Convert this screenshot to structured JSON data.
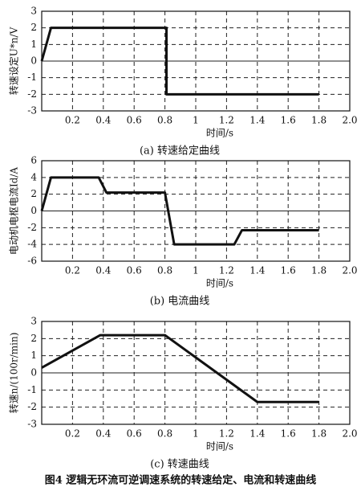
{
  "chart_data": [
    {
      "type": "line",
      "ylabel": "转速设定U*n/V",
      "xlabel": "时间/s",
      "caption": "(a) 转速给定曲线",
      "xlim": [
        0,
        2
      ],
      "ylim": [
        -3,
        3
      ],
      "xticks": [
        0.2,
        0.4,
        0.6,
        0.8,
        1.0,
        1.2,
        1.4,
        1.6,
        1.8,
        {
          "value": 2,
          "label": "2.0"
        }
      ],
      "yticks": [
        3,
        2,
        1,
        0,
        -1,
        -2,
        -3
      ],
      "grid": true,
      "series": [
        {
          "color": "#111111",
          "x": [
            0,
            0.06,
            0.81,
            0.81,
            1.8
          ],
          "values": [
            0,
            2,
            2,
            -2,
            -2
          ]
        }
      ]
    },
    {
      "type": "line",
      "ylabel": "电动机电枢电流Id/A",
      "xlabel": "时间/s",
      "caption": "(b) 电流曲线",
      "xlim": [
        0,
        2
      ],
      "ylim": [
        -6,
        6
      ],
      "xticks": [
        0.2,
        0.4,
        0.6,
        0.8,
        1.0,
        1.2,
        1.4,
        1.6,
        1.8,
        {
          "value": 2,
          "label": "2.0"
        }
      ],
      "yticks": [
        6,
        4,
        2,
        0,
        -2,
        -4,
        -6
      ],
      "grid": true,
      "series": [
        {
          "color": "#111111",
          "x": [
            0,
            0.06,
            0.37,
            0.42,
            0.8,
            0.86,
            1.25,
            1.3,
            1.8
          ],
          "values": [
            0,
            4,
            4,
            2.2,
            2.2,
            -4,
            -4,
            -2.3,
            -2.3
          ]
        }
      ]
    },
    {
      "type": "line",
      "ylabel": "转速n/(100r/min)",
      "xlabel": "时间/s",
      "caption": "(c) 转速曲线",
      "xlim": [
        0,
        2
      ],
      "ylim": [
        -3,
        3
      ],
      "xticks": [
        0.2,
        0.4,
        0.6,
        0.8,
        1.0,
        1.2,
        1.4,
        1.6,
        1.8,
        {
          "value": 2,
          "label": "2.0"
        }
      ],
      "yticks": [
        3,
        2,
        1,
        0,
        -1,
        -2,
        -3
      ],
      "grid": true,
      "series": [
        {
          "color": "#111111",
          "x": [
            0,
            0.38,
            0.8,
            1.4,
            1.8
          ],
          "values": [
            0.3,
            2.2,
            2.2,
            -1.7,
            -1.7
          ]
        }
      ]
    }
  ],
  "caption": "图4 逻辑无环流可逆调速系统的转速给定、电流和转速曲线"
}
